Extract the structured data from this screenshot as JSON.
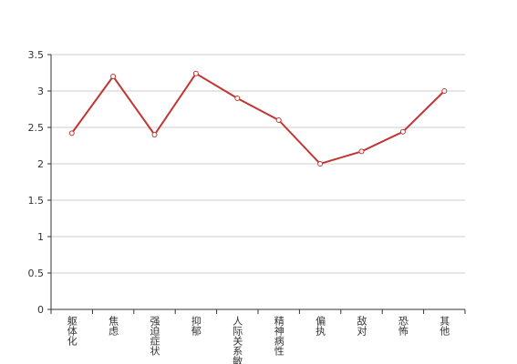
{
  "chart_data": {
    "type": "line",
    "categories": [
      "躯体化",
      "焦虑",
      "强迫症状",
      "抑郁",
      "人际关系敏感",
      "精神病性",
      "偏执",
      "敌对",
      "恐怖",
      "其他"
    ],
    "series": [
      {
        "color": "#c23531",
        "values": [
          2.42,
          3.2,
          2.4,
          3.24,
          2.9,
          2.6,
          2.0,
          2.17,
          2.44,
          3.0
        ]
      }
    ],
    "ylim": [
      0,
      3.5
    ],
    "yticks": [
      0,
      0.5,
      1,
      1.5,
      2,
      2.5,
      3,
      3.5
    ],
    "grid": true
  }
}
